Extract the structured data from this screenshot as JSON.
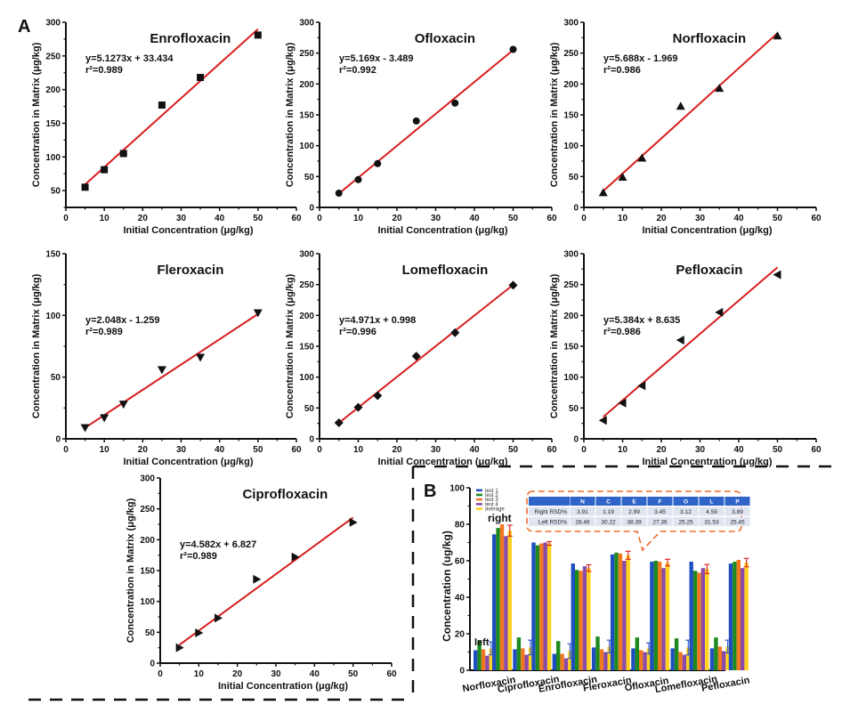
{
  "panel_labels": {
    "a": "A",
    "b": "B"
  },
  "chart_data": [
    {
      "type": "scatter",
      "title": "Enrofloxacin",
      "equation": "y=5.1273x + 33.434",
      "r2_label": "r²=0.989",
      "fit": {
        "slope": 5.1273,
        "intercept": 33.434
      },
      "marker": "square",
      "x": [
        5,
        10,
        15,
        25,
        35,
        50
      ],
      "y": [
        55,
        81,
        105,
        177,
        218,
        281
      ],
      "xlabel": "Initial Concentration (μg/kg)",
      "ylabel": "Concentration in Matrix (μg/kg)",
      "xlim": [
        0,
        60
      ],
      "ylim": [
        25,
        300
      ],
      "xticks": [
        0,
        10,
        20,
        30,
        40,
        50,
        60
      ],
      "yticks": [
        50,
        100,
        150,
        200,
        250,
        300
      ]
    },
    {
      "type": "scatter",
      "title": "Ofloxacin",
      "equation": "y=5.169x - 3.489",
      "r2_label": "r²=0.992",
      "fit": {
        "slope": 5.169,
        "intercept": -3.489
      },
      "marker": "circle",
      "x": [
        5,
        10,
        15,
        25,
        35,
        50
      ],
      "y": [
        23,
        45,
        71,
        140,
        169,
        256
      ],
      "xlabel": "Initial Concentration (μg/kg)",
      "ylabel": "Concentration in Matrix (μg/kg)",
      "xlim": [
        0,
        60
      ],
      "ylim": [
        0,
        300
      ],
      "xticks": [
        0,
        10,
        20,
        30,
        40,
        50,
        60
      ],
      "yticks": [
        0,
        50,
        100,
        150,
        200,
        250,
        300
      ]
    },
    {
      "type": "scatter",
      "title": "Norfloxacin",
      "equation": "y=5.688x - 1.969",
      "r2_label": "r²=0.986",
      "fit": {
        "slope": 5.688,
        "intercept": -1.969
      },
      "marker": "triangle-up",
      "x": [
        5,
        10,
        15,
        25,
        35,
        50
      ],
      "y": [
        24,
        49,
        80,
        164,
        193,
        278
      ],
      "xlabel": "Initial Concentration (μg/kg)",
      "ylabel": "Concentration in Matrix (μg/kg)",
      "xlim": [
        0,
        60
      ],
      "ylim": [
        0,
        300
      ],
      "xticks": [
        0,
        10,
        20,
        30,
        40,
        50,
        60
      ],
      "yticks": [
        0,
        50,
        100,
        150,
        200,
        250,
        300
      ]
    },
    {
      "type": "scatter",
      "title": "Fleroxacin",
      "equation": "y=2.048x - 1.259",
      "r2_label": "r²=0.989",
      "fit": {
        "slope": 2.048,
        "intercept": -1.259
      },
      "marker": "triangle-down",
      "x": [
        5,
        10,
        15,
        25,
        35,
        50
      ],
      "y": [
        9,
        17,
        28,
        56,
        66,
        102
      ],
      "xlabel": "Initial Concentration (μg/kg)",
      "ylabel": "Concentration in Matrix (μg/kg)",
      "xlim": [
        0,
        60
      ],
      "ylim": [
        0,
        150
      ],
      "xticks": [
        0,
        10,
        20,
        30,
        40,
        50,
        60
      ],
      "yticks": [
        0,
        50,
        100,
        150
      ]
    },
    {
      "type": "scatter",
      "title": "Lomefloxacin",
      "equation": "y=4.971x + 0.998",
      "r2_label": "r²=0.996",
      "fit": {
        "slope": 4.971,
        "intercept": 0.998
      },
      "marker": "diamond",
      "x": [
        5,
        10,
        15,
        25,
        35,
        50
      ],
      "y": [
        26,
        51,
        70,
        134,
        172,
        249
      ],
      "xlabel": "Initial Concentration (μg/kg)",
      "ylabel": "Concentration in Matrix (μg/kg)",
      "xlim": [
        0,
        60
      ],
      "ylim": [
        0,
        300
      ],
      "xticks": [
        0,
        10,
        20,
        30,
        40,
        50,
        60
      ],
      "yticks": [
        0,
        50,
        100,
        150,
        200,
        250,
        300
      ]
    },
    {
      "type": "scatter",
      "title": "Pefloxacin",
      "equation": "y=5.384x + 8.635",
      "r2_label": "r²=0.986",
      "fit": {
        "slope": 5.384,
        "intercept": 8.635
      },
      "marker": "triangle-left",
      "x": [
        5,
        10,
        15,
        25,
        35,
        50
      ],
      "y": [
        30,
        58,
        86,
        160,
        205,
        266
      ],
      "xlabel": "Initial Concentration (μg/kg)",
      "ylabel": "Concentration in Matrix (μg/kg)",
      "xlim": [
        0,
        60
      ],
      "ylim": [
        0,
        300
      ],
      "xticks": [
        0,
        10,
        20,
        30,
        40,
        50,
        60
      ],
      "yticks": [
        0,
        50,
        100,
        150,
        200,
        250,
        300
      ]
    },
    {
      "type": "scatter",
      "title": "Ciprofloxacin",
      "equation": "y=4.582x + 6.827",
      "r2_label": "r²=0.989",
      "fit": {
        "slope": 4.582,
        "intercept": 6.827
      },
      "marker": "triangle-right",
      "x": [
        5,
        10,
        15,
        25,
        35,
        50
      ],
      "y": [
        25,
        49,
        73,
        136,
        172,
        228
      ],
      "xlabel": "Initial Concentration (μg/kg)",
      "ylabel": "Concentration in Matrix (μg/kg)",
      "xlim": [
        0,
        60
      ],
      "ylim": [
        0,
        300
      ],
      "xticks": [
        0,
        10,
        20,
        30,
        40,
        50,
        60
      ],
      "yticks": [
        0,
        50,
        100,
        150,
        200,
        250,
        300
      ]
    },
    {
      "type": "bar",
      "title": "",
      "ylabel": "Concentration (ug/kg)",
      "xlabel": "",
      "ylim": [
        0,
        100
      ],
      "yticks": [
        0,
        20,
        40,
        60,
        80,
        100
      ],
      "categories": [
        "Norfloxacin",
        "Ciprofloxacin",
        "Enrofloxacin",
        "Fleroxacin",
        "Ofloxacin",
        "Lomefloxacin",
        "Pefloxacin"
      ],
      "groups": [
        "left",
        "right"
      ],
      "annotations": {
        "left": "left",
        "right": "right"
      },
      "legend_position": "top-left",
      "series": [
        {
          "name": "test 1",
          "color": "#1f4fbf",
          "left": [
            11,
            11.5,
            9,
            12.5,
            12,
            12,
            12
          ],
          "right": [
            74.5,
            70,
            58.5,
            63.5,
            59.5,
            59.5,
            58.5
          ]
        },
        {
          "name": "test 2",
          "color": "#1e8a1e",
          "left": [
            16.5,
            18,
            16,
            18.5,
            18,
            17.5,
            18
          ],
          "right": [
            78,
            68.5,
            55,
            64.5,
            60,
            54.5,
            59.5
          ]
        },
        {
          "name": "test 3",
          "color": "#f07820",
          "left": [
            11.5,
            12,
            9,
            11.5,
            11,
            10,
            13
          ],
          "right": [
            80,
            69.5,
            54.5,
            64,
            59.5,
            53.5,
            60.5
          ]
        },
        {
          "name": "test 4",
          "color": "#8a4aa8",
          "left": [
            8,
            8.5,
            6.5,
            10,
            10,
            8.5,
            10.5
          ],
          "right": [
            73.5,
            70,
            57,
            60,
            56,
            56,
            56
          ]
        },
        {
          "name": "average",
          "color": "#ffd21f",
          "left": [
            12,
            12.5,
            10.5,
            13,
            12,
            12.5,
            13
          ],
          "right": [
            76.5,
            69.5,
            56,
            63,
            59,
            55.5,
            59
          ]
        }
      ],
      "error": {
        "left": [
          3.5,
          4,
          4,
          3.5,
          3,
          4,
          3.5
        ],
        "right": [
          3,
          1,
          1.8,
          2.2,
          1.8,
          2.5,
          2.3
        ]
      },
      "rsd_table": {
        "columns": [
          "N",
          "C",
          "E",
          "F",
          "O",
          "L",
          "P"
        ],
        "rows": [
          {
            "label": "Right RSD%",
            "values": [
              "3.91",
              "1.19",
              "2.99",
              "3.45",
              "3.12",
              "4.59",
              "3.89"
            ]
          },
          {
            "label": "Left RSD%",
            "values": [
              "28.46",
              "30.22",
              "38.39",
              "27.36",
              "25.25",
              "31.53",
              "25.45"
            ]
          }
        ]
      }
    }
  ],
  "colors": {
    "fit_line": "#d81e1e",
    "callout": "#ee6a2c",
    "table_header": "#2f65c8",
    "table_row": "#dfe4f0",
    "error_right": "#e02a2a",
    "error_left": "#3a5fd0"
  }
}
